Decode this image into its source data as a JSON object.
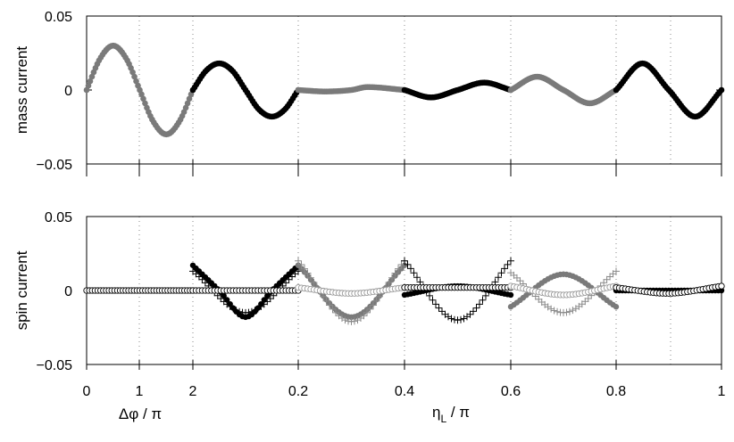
{
  "chart_data": [
    {
      "type": "scatter",
      "ylabel": "mass current",
      "ylim": [
        -0.05,
        0.05
      ],
      "yticks": [
        {
          "value": 0.05,
          "label": "0.05"
        },
        {
          "value": 0,
          "label": "0"
        },
        {
          "value": -0.05,
          "label": "−0.05"
        }
      ],
      "grid": "dotted vertical",
      "segments": [
        {
          "x_range": [
            0,
            2
          ],
          "color": "#7a7a7a",
          "values": [
            [
              0,
              0
            ],
            [
              0.25,
              0.021
            ],
            [
              0.5,
              0.03
            ],
            [
              0.75,
              0.021
            ],
            [
              1.0,
              0
            ],
            [
              1.25,
              -0.021
            ],
            [
              1.5,
              -0.03
            ],
            [
              1.75,
              -0.021
            ],
            [
              2.0,
              0
            ]
          ]
        },
        {
          "x_range": [
            0,
            0.2
          ],
          "color": "#000000",
          "values": [
            [
              0,
              0
            ],
            [
              0.025,
              0.013
            ],
            [
              0.05,
              0.018
            ],
            [
              0.075,
              0.013
            ],
            [
              0.1,
              0
            ],
            [
              0.125,
              -0.013
            ],
            [
              0.15,
              -0.018
            ],
            [
              0.175,
              -0.013
            ],
            [
              0.2,
              0
            ]
          ]
        },
        {
          "x_range": [
            0.2,
            0.4
          ],
          "color": "#7a7a7a",
          "values": [
            [
              0.2,
              0
            ],
            [
              0.25,
              -0.001
            ],
            [
              0.3,
              0
            ],
            [
              0.33,
              0.002
            ],
            [
              0.4,
              0
            ]
          ]
        },
        {
          "x_range": [
            0.4,
            0.6
          ],
          "color": "#000000",
          "values": [
            [
              0.4,
              0
            ],
            [
              0.45,
              -0.005
            ],
            [
              0.5,
              0
            ],
            [
              0.55,
              0.005
            ],
            [
              0.6,
              0
            ]
          ]
        },
        {
          "x_range": [
            0.6,
            0.8
          ],
          "color": "#7a7a7a",
          "values": [
            [
              0.6,
              0
            ],
            [
              0.65,
              0.009
            ],
            [
              0.7,
              0
            ],
            [
              0.75,
              -0.009
            ],
            [
              0.8,
              0
            ]
          ]
        },
        {
          "x_range": [
            0.8,
            1.0
          ],
          "color": "#000000",
          "values": [
            [
              0.8,
              0
            ],
            [
              0.85,
              0.018
            ],
            [
              0.9,
              0
            ],
            [
              0.95,
              -0.018
            ],
            [
              1.0,
              0
            ]
          ]
        }
      ]
    },
    {
      "type": "scatter",
      "ylabel": "spin current",
      "ylim": [
        -0.05,
        0.05
      ],
      "yticks": [
        {
          "value": 0.05,
          "label": "0.05"
        },
        {
          "value": 0,
          "label": "0"
        },
        {
          "value": -0.05,
          "label": "−0.05"
        }
      ],
      "grid": "dotted vertical",
      "segments": [
        {
          "x_range": [
            0,
            2
          ],
          "markers": [
            {
              "style": "filled-gray",
              "values": [
                [
                  0,
                  0
                ],
                [
                  2,
                  0
                ]
              ]
            },
            {
              "style": "open-black",
              "values": [
                [
                  0,
                  0
                ],
                [
                  2,
                  0
                ]
              ]
            }
          ]
        },
        {
          "x_range": [
            0,
            0.2
          ],
          "markers": [
            {
              "style": "filled-black",
              "values": [
                [
                  0,
                  0.017
                ],
                [
                  0.05,
                  0
                ],
                [
                  0.1,
                  -0.018
                ],
                [
                  0.15,
                  0
                ],
                [
                  0.2,
                  0.017
                ]
              ]
            },
            {
              "style": "plus-black",
              "values": [
                [
                  0,
                  0.013
                ],
                [
                  0.1,
                  -0.015
                ],
                [
                  0.2,
                  0.013
                ]
              ]
            },
            {
              "style": "open-black",
              "values": [
                [
                  0,
                  0
                ],
                [
                  0.2,
                  0
                ]
              ]
            }
          ]
        },
        {
          "x_range": [
            0.2,
            0.4
          ],
          "markers": [
            {
              "style": "filled-gray",
              "values": [
                [
                  0.2,
                  0.017
                ],
                [
                  0.3,
                  -0.018
                ],
                [
                  0.4,
                  0.017
                ]
              ]
            },
            {
              "style": "plus-gray",
              "values": [
                [
                  0.2,
                  0.02
                ],
                [
                  0.3,
                  -0.021
                ],
                [
                  0.4,
                  0.02
                ]
              ]
            },
            {
              "style": "open-gray",
              "values": [
                [
                  0.2,
                  0.002
                ],
                [
                  0.3,
                  -0.002
                ],
                [
                  0.4,
                  0.002
                ]
              ]
            }
          ]
        },
        {
          "x_range": [
            0.4,
            0.6
          ],
          "markers": [
            {
              "style": "filled-black",
              "values": [
                [
                  0.4,
                  -0.003
                ],
                [
                  0.5,
                  0.003
                ],
                [
                  0.6,
                  -0.003
                ]
              ]
            },
            {
              "style": "plus-black",
              "values": [
                [
                  0.4,
                  0.02
                ],
                [
                  0.5,
                  -0.02
                ],
                [
                  0.6,
                  0.02
                ]
              ]
            },
            {
              "style": "open-black",
              "values": [
                [
                  0.4,
                  0.002
                ],
                [
                  0.5,
                  0.002
                ],
                [
                  0.6,
                  0.002
                ]
              ]
            }
          ]
        },
        {
          "x_range": [
            0.6,
            0.8
          ],
          "markers": [
            {
              "style": "filled-gray",
              "values": [
                [
                  0.6,
                  -0.011
                ],
                [
                  0.7,
                  0.011
                ],
                [
                  0.8,
                  -0.011
                ]
              ]
            },
            {
              "style": "plus-gray",
              "values": [
                [
                  0.6,
                  0.012
                ],
                [
                  0.7,
                  -0.015
                ],
                [
                  0.8,
                  0.013
                ]
              ]
            },
            {
              "style": "open-gray",
              "values": [
                [
                  0.6,
                  0.003
                ],
                [
                  0.7,
                  -0.003
                ],
                [
                  0.8,
                  0.003
                ]
              ]
            }
          ]
        },
        {
          "x_range": [
            0.8,
            1.0
          ],
          "markers": [
            {
              "style": "filled-black",
              "values": [
                [
                  0.8,
                  0
                ],
                [
                  1.0,
                  0
                ]
              ]
            },
            {
              "style": "open-black",
              "values": [
                [
                  0.8,
                  0.002
                ],
                [
                  0.9,
                  -0.002
                ],
                [
                  1.0,
                  0.003
                ]
              ]
            }
          ]
        }
      ]
    }
  ],
  "xaxis": {
    "ticks": [
      "0",
      "1",
      "2",
      "0.2",
      "0.4",
      "0.6",
      "0.8",
      "1"
    ],
    "xlabel_left": "Δφ / π",
    "xlabel_right_main": "η",
    "xlabel_right_sub": "L",
    "xlabel_right_tail": " / π"
  }
}
